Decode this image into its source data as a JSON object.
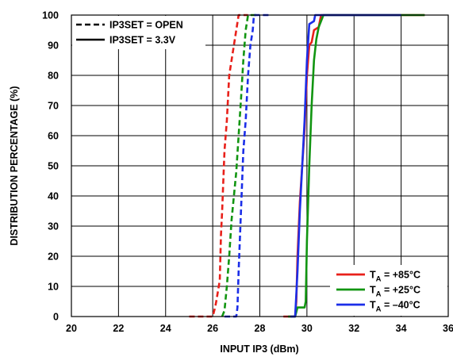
{
  "chart_data": {
    "type": "line",
    "title": "",
    "xlabel": "INPUT IP3 (dBm)",
    "ylabel": "DISTRIBUTION PERCENTAGE (%)",
    "xlim": [
      20,
      36
    ],
    "ylim": [
      0,
      100
    ],
    "x_ticks": [
      "20",
      "22",
      "24",
      "26",
      "28",
      "30",
      "32",
      "34",
      "36"
    ],
    "y_ticks": [
      "0",
      "10",
      "20",
      "30",
      "40",
      "50",
      "60",
      "70",
      "80",
      "90",
      "100"
    ],
    "grid": true,
    "legend_style": {
      "placement": "top-left",
      "entries": [
        {
          "label": "IP3SET = OPEN",
          "dash": "dashed"
        },
        {
          "label": "IP3SET = 3.3V",
          "dash": "solid"
        }
      ]
    },
    "legend_temp": {
      "placement": "bottom-right",
      "entries": [
        {
          "main": "T",
          "sub": "A",
          "rest": " = +85°C",
          "color": "#e8201a"
        },
        {
          "main": "T",
          "sub": "A",
          "rest": " = +25°C",
          "color": "#119511"
        },
        {
          "main": "T",
          "sub": "A",
          "rest": " = –40°C",
          "color": "#1b2ee8"
        }
      ]
    },
    "series": [
      {
        "temp": "+85°C",
        "ip3set": "OPEN",
        "color": "#e8201a",
        "dash": "dashed",
        "points": [
          [
            25.0,
            0
          ],
          [
            26.0,
            0
          ],
          [
            26.1,
            3
          ],
          [
            26.15,
            5
          ],
          [
            26.3,
            12
          ],
          [
            26.35,
            27
          ],
          [
            26.4,
            35
          ],
          [
            26.5,
            55
          ],
          [
            26.6,
            65
          ],
          [
            26.7,
            80
          ],
          [
            26.9,
            90
          ],
          [
            27.0,
            95
          ],
          [
            27.1,
            100
          ],
          [
            27.5,
            100
          ]
        ]
      },
      {
        "temp": "+25°C",
        "ip3set": "OPEN",
        "color": "#119511",
        "dash": "dashed",
        "points": [
          [
            26.4,
            0
          ],
          [
            26.5,
            2
          ],
          [
            26.6,
            10
          ],
          [
            26.7,
            20
          ],
          [
            26.8,
            32
          ],
          [
            27.0,
            48
          ],
          [
            27.1,
            60
          ],
          [
            27.2,
            72
          ],
          [
            27.3,
            85
          ],
          [
            27.4,
            95
          ],
          [
            27.5,
            100
          ],
          [
            28.0,
            100
          ]
        ]
      },
      {
        "temp": "–40°C",
        "ip3set": "OPEN",
        "color": "#1b2ee8",
        "dash": "dashed",
        "points": [
          [
            26.5,
            0
          ],
          [
            27.0,
            0
          ],
          [
            27.05,
            3
          ],
          [
            27.1,
            15
          ],
          [
            27.2,
            35
          ],
          [
            27.3,
            55
          ],
          [
            27.4,
            65
          ],
          [
            27.5,
            80
          ],
          [
            27.6,
            90
          ],
          [
            27.7,
            95
          ],
          [
            27.75,
            100
          ],
          [
            28.5,
            100
          ]
        ]
      },
      {
        "temp": "+85°C",
        "ip3set": "3.3V",
        "color": "#e8201a",
        "dash": "solid",
        "points": [
          [
            29.0,
            0
          ],
          [
            29.5,
            0
          ],
          [
            29.55,
            5
          ],
          [
            29.6,
            20
          ],
          [
            29.7,
            38
          ],
          [
            29.8,
            50
          ],
          [
            29.9,
            62
          ],
          [
            30.0,
            80
          ],
          [
            30.1,
            90
          ],
          [
            30.2,
            91
          ],
          [
            30.3,
            95
          ],
          [
            30.5,
            96
          ],
          [
            30.6,
            100
          ],
          [
            35.0,
            100
          ]
        ]
      },
      {
        "temp": "+25°C",
        "ip3set": "3.3V",
        "color": "#119511",
        "dash": "solid",
        "points": [
          [
            29.2,
            0
          ],
          [
            29.5,
            0
          ],
          [
            29.6,
            3
          ],
          [
            29.9,
            3
          ],
          [
            29.95,
            5
          ],
          [
            30.0,
            25
          ],
          [
            30.1,
            50
          ],
          [
            30.2,
            70
          ],
          [
            30.3,
            85
          ],
          [
            30.4,
            92
          ],
          [
            30.5,
            96
          ],
          [
            30.6,
            98
          ],
          [
            30.7,
            100
          ],
          [
            35.0,
            100
          ]
        ]
      },
      {
        "temp": "–40°C",
        "ip3set": "3.3V",
        "color": "#1b2ee8",
        "dash": "solid",
        "points": [
          [
            29.3,
            0
          ],
          [
            29.5,
            0
          ],
          [
            29.6,
            15
          ],
          [
            29.7,
            35
          ],
          [
            29.8,
            50
          ],
          [
            29.9,
            65
          ],
          [
            30.0,
            85
          ],
          [
            30.1,
            97
          ],
          [
            30.3,
            98
          ],
          [
            30.35,
            100
          ],
          [
            34.0,
            100
          ]
        ]
      }
    ]
  }
}
